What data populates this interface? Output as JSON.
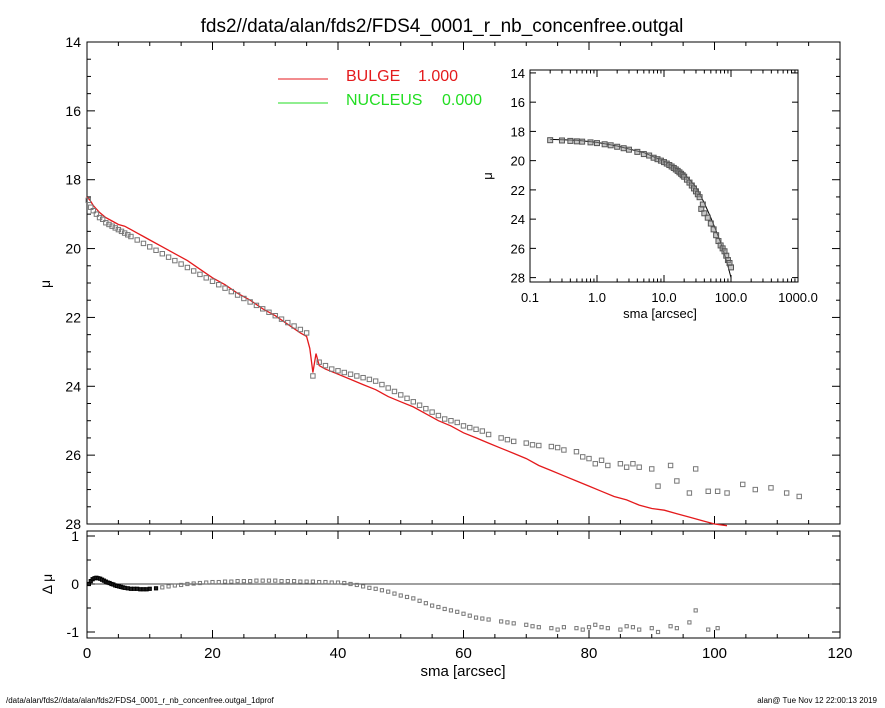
{
  "title": "fds2//data/alan/fds2/FDS4_0001_r_nb_concenfree.outgal",
  "footer": {
    "left": "/data/alan/fds2//data/alan/fds2/FDS4_0001_r_nb_concenfree.outgal_1dprof",
    "right": "alan@  Tue Nov 12 22:00:13 2019"
  },
  "colors": {
    "bulge": "#e41a1c",
    "nucleus": "#22dd22",
    "data": "#777777",
    "axes": "#000000"
  },
  "chart_data": [
    {
      "id": "main",
      "type": "scatter",
      "xlabel": "",
      "ylabel": "μ",
      "xlim": [
        0,
        120
      ],
      "ylim": [
        28,
        14
      ],
      "yticks": [
        "14",
        "16",
        "18",
        "20",
        "22",
        "24",
        "26",
        "28"
      ],
      "legend": [
        {
          "name": "BULGE",
          "value": "1.000",
          "color": "#e41a1c"
        },
        {
          "name": "NUCLEUS",
          "value": "0.000",
          "color": "#22dd22"
        }
      ],
      "data": {
        "x": [
          0.2,
          0.6,
          1.0,
          1.5,
          2.0,
          2.5,
          3.0,
          3.5,
          4.0,
          4.5,
          5.0,
          5.5,
          6.0,
          6.5,
          7.0,
          8.0,
          9.0,
          10.0,
          11.0,
          12.0,
          13.0,
          14.0,
          15.0,
          16.0,
          17.0,
          18.0,
          19.0,
          20.0,
          21.0,
          22.0,
          23.0,
          24.0,
          25.0,
          26.0,
          27.0,
          28.0,
          29.0,
          30.0,
          31.0,
          32.0,
          33.0,
          34.0,
          35.0,
          36.0,
          37.0,
          38.0,
          39.0,
          40.0,
          41.0,
          42.0,
          43.0,
          44.0,
          45.0,
          46.0,
          47.0,
          48.0,
          49.0,
          50.0,
          51.0,
          52.0,
          53.0,
          54.0,
          55.0,
          56.0,
          57.0,
          58.0,
          59.0,
          60.0,
          61.0,
          62.0,
          63.0,
          64.0,
          66.0,
          67.0,
          68.0,
          70.0,
          71.0,
          72.0,
          74.0,
          75.0,
          76.0,
          78.0,
          79.0,
          80.0,
          81.0,
          82.0,
          83.0,
          85.0,
          86.0,
          87.0,
          88.0,
          90.0,
          91.0,
          93.0,
          94.0,
          96.0,
          97.0,
          99.0,
          100.5,
          102.0,
          104.5,
          106.5,
          109.0,
          111.5,
          113.5
        ],
        "y": [
          18.6,
          18.8,
          18.9,
          19.0,
          19.1,
          19.15,
          19.25,
          19.3,
          19.35,
          19.4,
          19.45,
          19.5,
          19.55,
          19.6,
          19.65,
          19.75,
          19.85,
          19.95,
          20.05,
          20.15,
          20.25,
          20.35,
          20.45,
          20.55,
          20.65,
          20.75,
          20.85,
          20.95,
          21.05,
          21.15,
          21.25,
          21.35,
          21.45,
          21.55,
          21.65,
          21.75,
          21.85,
          21.95,
          22.05,
          22.15,
          22.25,
          22.35,
          22.45,
          23.7,
          23.3,
          23.4,
          23.5,
          23.55,
          23.6,
          23.65,
          23.7,
          23.75,
          23.8,
          23.85,
          23.95,
          24.05,
          24.15,
          24.25,
          24.35,
          24.45,
          24.55,
          24.65,
          24.75,
          24.85,
          24.95,
          25.0,
          25.05,
          25.15,
          25.2,
          25.25,
          25.3,
          25.4,
          25.5,
          25.55,
          25.6,
          25.65,
          25.7,
          25.72,
          25.75,
          25.78,
          25.85,
          25.9,
          26.05,
          26.1,
          26.25,
          26.15,
          26.3,
          26.25,
          26.35,
          26.25,
          26.35,
          26.4,
          26.9,
          26.3,
          26.75,
          27.1,
          26.4,
          27.05,
          27.05,
          27.1,
          26.85,
          27.0,
          26.95,
          27.1,
          27.2
        ]
      },
      "model_bulge": {
        "x": [
          0,
          0.5,
          1,
          2,
          3,
          4,
          5,
          6,
          7,
          8,
          9,
          10,
          12,
          14,
          16,
          18,
          20,
          22,
          24,
          26,
          28,
          30,
          32,
          34,
          35,
          35.5,
          36,
          36.5,
          37,
          38,
          40,
          42,
          44,
          46,
          48,
          50,
          52,
          54,
          56,
          58,
          60,
          62,
          64,
          66,
          68,
          70,
          72,
          74,
          76,
          78,
          80,
          82,
          84,
          86,
          88,
          90,
          92,
          94,
          96,
          98,
          100,
          102
        ],
        "y": [
          18.5,
          18.6,
          18.75,
          18.95,
          19.1,
          19.2,
          19.3,
          19.35,
          19.45,
          19.55,
          19.65,
          19.75,
          19.95,
          20.15,
          20.35,
          20.6,
          20.85,
          21.05,
          21.3,
          21.5,
          21.75,
          21.95,
          22.2,
          22.45,
          22.55,
          22.9,
          23.6,
          23.05,
          23.4,
          23.5,
          23.65,
          23.8,
          23.95,
          24.1,
          24.3,
          24.45,
          24.6,
          24.8,
          25.0,
          25.15,
          25.35,
          25.5,
          25.65,
          25.8,
          25.95,
          26.1,
          26.3,
          26.45,
          26.6,
          26.75,
          26.9,
          27.05,
          27.2,
          27.3,
          27.45,
          27.55,
          27.6,
          27.7,
          27.8,
          27.9,
          28.0,
          28.05
        ]
      }
    },
    {
      "id": "residual",
      "type": "scatter",
      "xlabel": "sma [arcsec]",
      "ylabel": "Δ μ",
      "xlim": [
        0,
        120
      ],
      "ylim": [
        -1.05,
        1.05
      ],
      "xticks": [
        "0",
        "20",
        "40",
        "60",
        "80",
        "100",
        "120"
      ],
      "yticks": [
        "1",
        "0",
        "-1"
      ],
      "data": {
        "x": [
          0.3,
          0.6,
          0.9,
          1.2,
          1.5,
          1.8,
          2.1,
          2.4,
          2.7,
          3.0,
          3.3,
          3.6,
          3.9,
          4.2,
          4.5,
          4.8,
          5.1,
          5.4,
          5.7,
          6.0,
          6.5,
          7.0,
          7.5,
          8.0,
          8.5,
          9.0,
          9.5,
          10.0,
          11.0,
          12.0,
          13.0,
          14.0,
          15.0,
          16.0,
          17.0,
          18.0,
          19.0,
          20.0,
          21.0,
          22.0,
          23.0,
          24.0,
          25.0,
          26.0,
          27.0,
          28.0,
          29.0,
          30.0,
          31.0,
          32.0,
          33.0,
          34.0,
          35.0,
          36.0,
          37.0,
          38.0,
          39.0,
          40.0,
          41.0,
          42.0,
          43.0,
          44.0,
          45.0,
          46.0,
          47.0,
          48.0,
          49.0,
          50.0,
          51.0,
          52.0,
          53.0,
          54.0,
          55.0,
          56.0,
          57.0,
          58.0,
          59.0,
          60.0,
          61.0,
          62.0,
          63.0,
          64.0,
          66.0,
          67.0,
          68.0,
          70.0,
          71.0,
          72.0,
          74.0,
          75.0,
          76.0,
          78.0,
          79.0,
          80.0,
          81.0,
          82.0,
          83.0,
          85.0,
          86.0,
          87.0,
          88.0,
          90.0,
          91.0,
          93.0,
          94.0,
          96.0,
          97.0,
          99.0,
          100.5
        ],
        "y": [
          0.0,
          0.06,
          0.1,
          0.12,
          0.13,
          0.12,
          0.11,
          0.09,
          0.07,
          0.05,
          0.03,
          0.02,
          0.0,
          -0.01,
          -0.03,
          -0.04,
          -0.05,
          -0.06,
          -0.07,
          -0.08,
          -0.09,
          -0.1,
          -0.1,
          -0.1,
          -0.11,
          -0.11,
          -0.11,
          -0.1,
          -0.09,
          -0.07,
          -0.05,
          -0.03,
          -0.02,
          0.0,
          0.01,
          0.02,
          0.03,
          0.04,
          0.04,
          0.05,
          0.05,
          0.06,
          0.06,
          0.06,
          0.07,
          0.07,
          0.07,
          0.07,
          0.06,
          0.06,
          0.06,
          0.05,
          0.05,
          0.05,
          0.04,
          0.04,
          0.03,
          0.03,
          0.02,
          0.0,
          -0.02,
          -0.05,
          -0.08,
          -0.1,
          -0.13,
          -0.16,
          -0.2,
          -0.24,
          -0.27,
          -0.3,
          -0.35,
          -0.4,
          -0.45,
          -0.48,
          -0.52,
          -0.55,
          -0.58,
          -0.62,
          -0.66,
          -0.7,
          -0.72,
          -0.74,
          -0.78,
          -0.8,
          -0.82,
          -0.85,
          -0.88,
          -0.9,
          -0.92,
          -0.95,
          -0.9,
          -0.92,
          -0.95,
          -0.9,
          -0.85,
          -0.9,
          -0.92,
          -0.95,
          -0.88,
          -0.9,
          -0.95,
          -0.92,
          -1.0,
          -0.88,
          -0.92,
          -0.8,
          -0.55,
          -0.95,
          -0.92
        ]
      }
    },
    {
      "id": "inset",
      "type": "scatter",
      "xscale": "log",
      "xlabel": "sma [arcsec]",
      "ylabel": "μ",
      "xlim": [
        0.1,
        1000
      ],
      "ylim": [
        28.3,
        13.8
      ],
      "xticks": [
        "0.1",
        "1.0",
        "10.0",
        "100.0",
        "1000.0"
      ],
      "yticks": [
        "14",
        "16",
        "18",
        "20",
        "22",
        "24",
        "26",
        "28"
      ],
      "data": {
        "x": [
          0.2,
          0.3,
          0.4,
          0.5,
          0.6,
          0.8,
          1.0,
          1.3,
          1.6,
          2.0,
          2.5,
          3.0,
          4.0,
          5.0,
          6.0,
          7.0,
          8.0,
          9.0,
          10,
          11,
          12,
          13,
          14,
          15,
          16,
          17,
          18,
          19,
          20,
          22,
          24,
          26,
          28,
          30,
          32,
          34,
          36,
          38,
          40,
          45,
          50,
          55,
          60,
          65,
          70,
          75,
          80,
          85,
          90,
          95,
          100
        ],
        "y": [
          18.6,
          18.62,
          18.65,
          18.68,
          18.7,
          18.75,
          18.8,
          18.88,
          18.95,
          19.05,
          19.15,
          19.25,
          19.4,
          19.55,
          19.65,
          19.8,
          19.9,
          20.0,
          20.1,
          20.2,
          20.3,
          20.4,
          20.5,
          20.6,
          20.7,
          20.8,
          20.9,
          21.0,
          21.1,
          21.3,
          21.5,
          21.7,
          21.9,
          22.1,
          22.3,
          22.5,
          23.3,
          23.0,
          23.6,
          23.9,
          24.3,
          24.7,
          25.1,
          25.5,
          25.8,
          26.0,
          26.2,
          26.5,
          26.8,
          27.0,
          27.3
        ]
      },
      "model": {
        "x": [
          0.2,
          0.5,
          1,
          2,
          3,
          5,
          8,
          10,
          15,
          20,
          30,
          40,
          50,
          60,
          70,
          80,
          90,
          100
        ],
        "y": [
          18.55,
          18.6,
          18.75,
          19.0,
          19.2,
          19.45,
          19.85,
          20.05,
          20.5,
          20.9,
          21.8,
          22.9,
          23.9,
          24.8,
          25.6,
          26.4,
          27.2,
          28.0
        ]
      }
    }
  ]
}
